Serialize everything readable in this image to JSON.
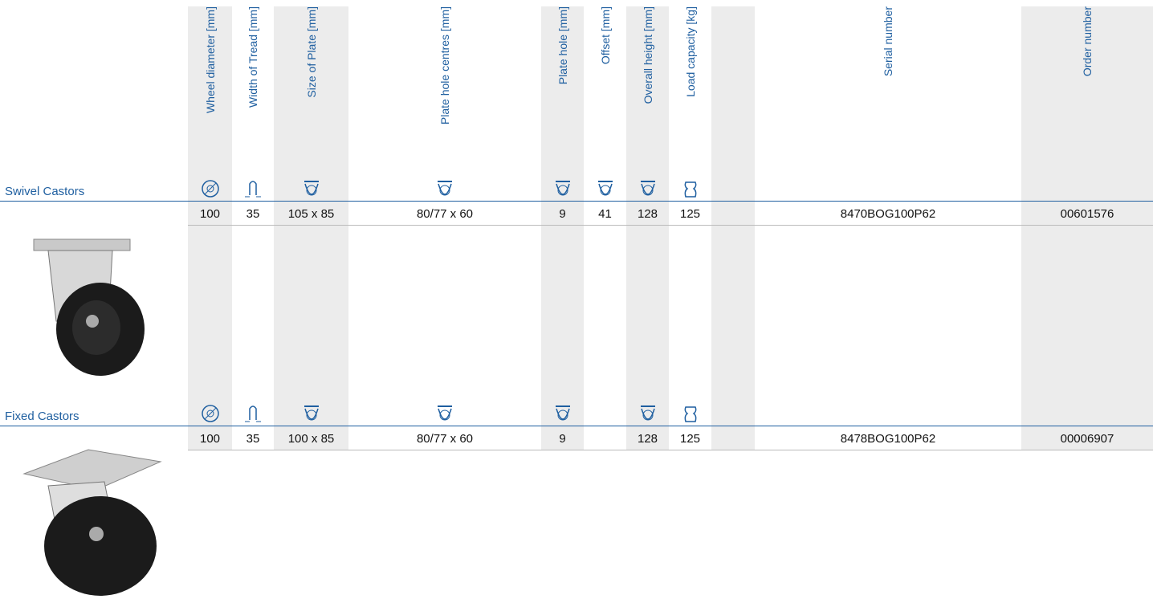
{
  "table": {
    "columns": [
      "Wheel diameter [mm]",
      "Width of Tread [mm]",
      "Size of Plate [mm]",
      "Plate hole centres [mm]",
      "Plate hole [mm]",
      "Offset [mm]",
      "Overall height [mm]",
      "Load capacity [kg]",
      "Serial number",
      "Order number"
    ],
    "sections": [
      {
        "title": "Swivel Castors",
        "row": [
          "100",
          "35",
          "105 x 85",
          "80/77 x 60",
          "9",
          "41",
          "128",
          "125",
          "8470BOG100P62",
          "00601576"
        ]
      },
      {
        "title": "Fixed Castors",
        "row": [
          "100",
          "35",
          "100 x 85",
          "80/77 x 60",
          "9",
          null,
          "128",
          "125",
          "8478BOG100P62",
          "00006907"
        ]
      }
    ]
  }
}
